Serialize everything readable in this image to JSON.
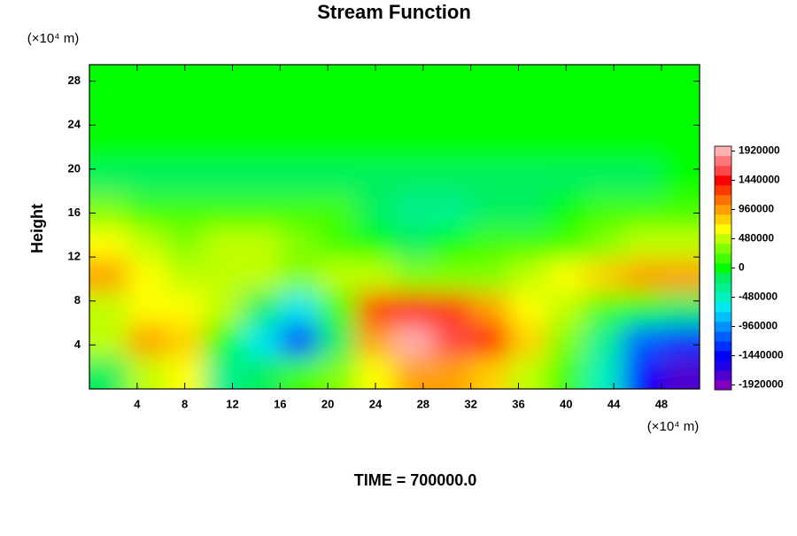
{
  "chart_data": {
    "type": "contour",
    "title": "Stream Function",
    "ylabel": "Height",
    "y_unit": "(×10⁴ m)",
    "x_unit": "(×10⁴ m)",
    "footer": "TIME = 700000.0",
    "xlim": [
      0,
      51.2
    ],
    "ylim": [
      0,
      29.5
    ],
    "xticks": [
      4,
      8,
      12,
      16,
      20,
      24,
      28,
      32,
      36,
      40,
      44,
      48
    ],
    "yticks": [
      4,
      8,
      12,
      16,
      20,
      24,
      28
    ],
    "x": [
      1.6,
      4.8,
      8,
      11.2,
      14.4,
      17.6,
      20.8,
      24,
      27.2,
      30.4,
      33.6,
      36.8,
      40,
      43.2,
      46.4,
      49.6
    ],
    "y": [
      1.5,
      4.4,
      7.4,
      10.3,
      13.3,
      16.2,
      19.2,
      22.1,
      25.1,
      28.0
    ],
    "z": [
      [
        -100000,
        500000,
        700000,
        -400000,
        -200000,
        200000,
        300000,
        600000,
        1000000,
        1000000,
        800000,
        500000,
        100000,
        -500000,
        -1500000,
        -1700000
      ],
      [
        400000,
        900000,
        800000,
        0,
        -600000,
        -1300000,
        -200000,
        900000,
        1900000,
        1600000,
        1400000,
        800000,
        300000,
        -300000,
        -1200000,
        -1300000
      ],
      [
        500000,
        600000,
        700000,
        500000,
        -100000,
        -600000,
        200000,
        1300000,
        1400000,
        1300000,
        900000,
        600000,
        400000,
        100000,
        0,
        -100000
      ],
      [
        900000,
        600000,
        500000,
        500000,
        400000,
        300000,
        400000,
        400000,
        300000,
        300000,
        300000,
        400000,
        600000,
        800000,
        900000,
        900000
      ],
      [
        700000,
        400000,
        300000,
        500000,
        500000,
        300000,
        200000,
        0,
        -100000,
        0,
        100000,
        100000,
        200000,
        300000,
        500000,
        500000
      ],
      [
        300000,
        200000,
        200000,
        200000,
        100000,
        100000,
        100000,
        -200000,
        -250000,
        -300000,
        -200000,
        -100000,
        0,
        100000,
        200000,
        200000
      ],
      [
        -100000,
        -100000,
        -150000,
        -150000,
        -100000,
        -100000,
        -100000,
        -150000,
        -200000,
        -150000,
        -150000,
        -100000,
        -100000,
        -100000,
        -100000,
        -50000
      ],
      [
        0,
        0,
        -50000,
        -50000,
        0,
        0,
        0,
        -50000,
        -50000,
        -50000,
        0,
        0,
        0,
        0,
        0,
        0
      ],
      [
        0,
        0,
        0,
        0,
        0,
        0,
        0,
        0,
        0,
        0,
        0,
        0,
        0,
        0,
        0,
        0
      ],
      [
        0,
        0,
        0,
        0,
        0,
        0,
        0,
        0,
        0,
        0,
        0,
        0,
        0,
        0,
        0,
        0
      ]
    ],
    "colorbar": {
      "lim": [
        -2000000,
        2000000
      ],
      "ticks": [
        -1920000,
        -1440000,
        -960000,
        -480000,
        0,
        480000,
        960000,
        1440000,
        1920000
      ],
      "colors": [
        "#8000c0",
        "#5000d0",
        "#2000e8",
        "#0000ff",
        "#0030ff",
        "#0060ff",
        "#0090ff",
        "#00c0ff",
        "#00e8f0",
        "#00f0c0",
        "#00f090",
        "#00f060",
        "#00ff00",
        "#40ff00",
        "#80ff00",
        "#c0ff00",
        "#ffff00",
        "#ffd000",
        "#ffa000",
        "#ff7000",
        "#ff3800",
        "#ff0000",
        "#ff4848",
        "#ff7878",
        "#ffb0b0"
      ]
    }
  }
}
